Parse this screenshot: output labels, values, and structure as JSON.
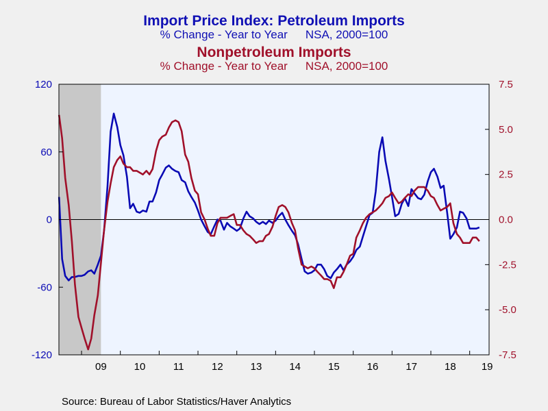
{
  "titles": {
    "line1": "Import Price Index: Petroleum Imports",
    "line1_sub_left": "% Change - Year to Year",
    "line1_sub_right": "NSA, 2000=100",
    "line2": "Nonpetroleum Imports",
    "line2_sub_left": "% Change - Year to Year",
    "line2_sub_right": "NSA, 2000=100"
  },
  "source": "Source:  Bureau of Labor Statistics/Haver Analytics",
  "colors": {
    "petroleum": "#0a0ab4",
    "nonpetroleum": "#a0102a",
    "plot_bg": "#eef4ff",
    "recession": "#c8c8c8"
  },
  "chart_data": {
    "type": "line",
    "x_tick_labels": [
      "09",
      "10",
      "11",
      "12",
      "13",
      "14",
      "15",
      "16",
      "17",
      "18",
      "19"
    ],
    "x_range": [
      2008.417,
      2019.5
    ],
    "recession_shade": [
      2008.417,
      2009.5
    ],
    "y_left": {
      "range": [
        -120,
        120
      ],
      "ticks": [
        "120",
        "60",
        "0",
        "-60",
        "-120"
      ],
      "tick_values": [
        120,
        60,
        0,
        -60,
        -120
      ]
    },
    "y_right": {
      "range": [
        -7.5,
        7.5
      ],
      "ticks": [
        "7.5",
        "5.0",
        "2.5",
        "0.0",
        "-2.5",
        "-5.0",
        "-7.5"
      ],
      "tick_values": [
        7.5,
        5.0,
        2.5,
        0.0,
        -2.5,
        -5.0,
        -7.5
      ]
    },
    "series": [
      {
        "name": "Import Price Index: Petroleum Imports",
        "axis": "left",
        "points": [
          [
            2008.42,
            20
          ],
          [
            2008.5,
            -35
          ],
          [
            2008.58,
            -50
          ],
          [
            2008.67,
            -54
          ],
          [
            2008.75,
            -51
          ],
          [
            2008.83,
            -51
          ],
          [
            2008.92,
            -50
          ],
          [
            2009.0,
            -50
          ],
          [
            2009.08,
            -49
          ],
          [
            2009.17,
            -46
          ],
          [
            2009.25,
            -45
          ],
          [
            2009.33,
            -48
          ],
          [
            2009.42,
            -40
          ],
          [
            2009.5,
            -32
          ],
          [
            2009.58,
            -10
          ],
          [
            2009.67,
            30
          ],
          [
            2009.75,
            78
          ],
          [
            2009.83,
            94
          ],
          [
            2009.92,
            82
          ],
          [
            2010.0,
            66
          ],
          [
            2010.08,
            57
          ],
          [
            2010.17,
            38
          ],
          [
            2010.25,
            10
          ],
          [
            2010.33,
            14
          ],
          [
            2010.42,
            7
          ],
          [
            2010.5,
            6
          ],
          [
            2010.58,
            8
          ],
          [
            2010.67,
            7
          ],
          [
            2010.75,
            16
          ],
          [
            2010.83,
            16
          ],
          [
            2010.92,
            24
          ],
          [
            2011.0,
            35
          ],
          [
            2011.08,
            40
          ],
          [
            2011.17,
            46
          ],
          [
            2011.25,
            48
          ],
          [
            2011.33,
            45
          ],
          [
            2011.42,
            43
          ],
          [
            2011.5,
            42
          ],
          [
            2011.58,
            35
          ],
          [
            2011.67,
            33
          ],
          [
            2011.75,
            25
          ],
          [
            2011.83,
            20
          ],
          [
            2011.92,
            15
          ],
          [
            2012.0,
            8
          ],
          [
            2012.08,
            0
          ],
          [
            2012.17,
            -6
          ],
          [
            2012.25,
            -11
          ],
          [
            2012.33,
            -13
          ],
          [
            2012.42,
            -6
          ],
          [
            2012.5,
            0
          ],
          [
            2012.58,
            -1
          ],
          [
            2012.67,
            -9
          ],
          [
            2012.75,
            -3
          ],
          [
            2012.83,
            -6
          ],
          [
            2012.92,
            -8
          ],
          [
            2013.0,
            -10
          ],
          [
            2013.08,
            -8
          ],
          [
            2013.17,
            1
          ],
          [
            2013.25,
            7
          ],
          [
            2013.33,
            3
          ],
          [
            2013.42,
            1
          ],
          [
            2013.5,
            -2
          ],
          [
            2013.58,
            -4
          ],
          [
            2013.67,
            -2
          ],
          [
            2013.75,
            -4
          ],
          [
            2013.83,
            -1
          ],
          [
            2013.92,
            -3
          ],
          [
            2014.0,
            -1
          ],
          [
            2014.08,
            3
          ],
          [
            2014.17,
            6
          ],
          [
            2014.25,
            0
          ],
          [
            2014.33,
            -5
          ],
          [
            2014.42,
            -10
          ],
          [
            2014.5,
            -14
          ],
          [
            2014.58,
            -22
          ],
          [
            2014.67,
            -35
          ],
          [
            2014.75,
            -46
          ],
          [
            2014.83,
            -48
          ],
          [
            2014.92,
            -47
          ],
          [
            2015.0,
            -45
          ],
          [
            2015.08,
            -40
          ],
          [
            2015.17,
            -40
          ],
          [
            2015.25,
            -44
          ],
          [
            2015.33,
            -50
          ],
          [
            2015.42,
            -52
          ],
          [
            2015.5,
            -47
          ],
          [
            2015.58,
            -44
          ],
          [
            2015.67,
            -40
          ],
          [
            2015.75,
            -45
          ],
          [
            2015.83,
            -40
          ],
          [
            2015.92,
            -37
          ],
          [
            2016.0,
            -33
          ],
          [
            2016.08,
            -27
          ],
          [
            2016.17,
            -24
          ],
          [
            2016.25,
            -15
          ],
          [
            2016.33,
            -6
          ],
          [
            2016.42,
            4
          ],
          [
            2016.5,
            6
          ],
          [
            2016.58,
            25
          ],
          [
            2016.67,
            60
          ],
          [
            2016.75,
            73
          ],
          [
            2016.83,
            52
          ],
          [
            2016.92,
            36
          ],
          [
            2017.0,
            20
          ],
          [
            2017.08,
            3
          ],
          [
            2017.17,
            5
          ],
          [
            2017.25,
            14
          ],
          [
            2017.33,
            19
          ],
          [
            2017.42,
            12
          ],
          [
            2017.5,
            27
          ],
          [
            2017.58,
            23
          ],
          [
            2017.67,
            19
          ],
          [
            2017.75,
            18
          ],
          [
            2017.83,
            22
          ],
          [
            2017.92,
            34
          ],
          [
            2018.0,
            42
          ],
          [
            2018.08,
            45
          ],
          [
            2018.17,
            38
          ],
          [
            2018.25,
            28
          ],
          [
            2018.33,
            30
          ],
          [
            2018.42,
            6
          ],
          [
            2018.5,
            -17
          ],
          [
            2018.58,
            -13
          ],
          [
            2018.67,
            -7
          ],
          [
            2018.75,
            7
          ],
          [
            2018.83,
            6
          ],
          [
            2018.92,
            1
          ],
          [
            2019.0,
            -8
          ],
          [
            2019.08,
            -8
          ],
          [
            2019.17,
            -8
          ],
          [
            2019.25,
            -7
          ]
        ]
      },
      {
        "name": "Nonpetroleum Imports",
        "axis": "right",
        "points": [
          [
            2008.42,
            5.8
          ],
          [
            2008.5,
            4.5
          ],
          [
            2008.58,
            2.3
          ],
          [
            2008.67,
            0.8
          ],
          [
            2008.75,
            -1.2
          ],
          [
            2008.83,
            -3.6
          ],
          [
            2008.92,
            -5.4
          ],
          [
            2009.0,
            -6.0
          ],
          [
            2009.08,
            -6.6
          ],
          [
            2009.17,
            -7.2
          ],
          [
            2009.25,
            -6.6
          ],
          [
            2009.33,
            -5.3
          ],
          [
            2009.42,
            -4.2
          ],
          [
            2009.5,
            -2.4
          ],
          [
            2009.58,
            -0.6
          ],
          [
            2009.67,
            1.0
          ],
          [
            2009.75,
            2.0
          ],
          [
            2009.83,
            2.9
          ],
          [
            2009.92,
            3.3
          ],
          [
            2010.0,
            3.5
          ],
          [
            2010.08,
            3.1
          ],
          [
            2010.17,
            2.9
          ],
          [
            2010.25,
            2.9
          ],
          [
            2010.33,
            2.7
          ],
          [
            2010.42,
            2.7
          ],
          [
            2010.5,
            2.6
          ],
          [
            2010.58,
            2.5
          ],
          [
            2010.67,
            2.7
          ],
          [
            2010.75,
            2.5
          ],
          [
            2010.83,
            2.8
          ],
          [
            2010.92,
            3.8
          ],
          [
            2011.0,
            4.4
          ],
          [
            2011.08,
            4.6
          ],
          [
            2011.17,
            4.7
          ],
          [
            2011.25,
            5.1
          ],
          [
            2011.33,
            5.4
          ],
          [
            2011.42,
            5.5
          ],
          [
            2011.5,
            5.4
          ],
          [
            2011.58,
            4.9
          ],
          [
            2011.67,
            3.6
          ],
          [
            2011.75,
            3.2
          ],
          [
            2011.83,
            2.3
          ],
          [
            2011.92,
            1.6
          ],
          [
            2012.0,
            1.4
          ],
          [
            2012.08,
            0.4
          ],
          [
            2012.17,
            0.0
          ],
          [
            2012.25,
            -0.5
          ],
          [
            2012.33,
            -0.9
          ],
          [
            2012.42,
            -0.9
          ],
          [
            2012.5,
            -0.2
          ],
          [
            2012.58,
            0.1
          ],
          [
            2012.67,
            0.1
          ],
          [
            2012.75,
            0.1
          ],
          [
            2012.83,
            0.2
          ],
          [
            2012.92,
            0.3
          ],
          [
            2013.0,
            -0.3
          ],
          [
            2013.08,
            -0.3
          ],
          [
            2013.17,
            -0.6
          ],
          [
            2013.25,
            -0.8
          ],
          [
            2013.33,
            -0.9
          ],
          [
            2013.42,
            -1.1
          ],
          [
            2013.5,
            -1.3
          ],
          [
            2013.58,
            -1.2
          ],
          [
            2013.67,
            -1.2
          ],
          [
            2013.75,
            -0.9
          ],
          [
            2013.83,
            -0.8
          ],
          [
            2013.92,
            -0.4
          ],
          [
            2014.0,
            0.2
          ],
          [
            2014.08,
            0.7
          ],
          [
            2014.17,
            0.8
          ],
          [
            2014.25,
            0.7
          ],
          [
            2014.33,
            0.4
          ],
          [
            2014.42,
            -0.2
          ],
          [
            2014.5,
            -0.6
          ],
          [
            2014.58,
            -1.6
          ],
          [
            2014.67,
            -2.5
          ],
          [
            2014.75,
            -2.6
          ],
          [
            2014.83,
            -2.7
          ],
          [
            2014.92,
            -2.6
          ],
          [
            2015.0,
            -2.7
          ],
          [
            2015.08,
            -2.9
          ],
          [
            2015.17,
            -3.1
          ],
          [
            2015.25,
            -3.3
          ],
          [
            2015.33,
            -3.3
          ],
          [
            2015.42,
            -3.4
          ],
          [
            2015.5,
            -3.8
          ],
          [
            2015.58,
            -3.2
          ],
          [
            2015.67,
            -3.2
          ],
          [
            2015.75,
            -2.9
          ],
          [
            2015.83,
            -2.5
          ],
          [
            2015.92,
            -2.0
          ],
          [
            2016.0,
            -1.9
          ],
          [
            2016.08,
            -1.0
          ],
          [
            2016.17,
            -0.6
          ],
          [
            2016.25,
            -0.2
          ],
          [
            2016.33,
            0.1
          ],
          [
            2016.42,
            0.3
          ],
          [
            2016.5,
            0.4
          ],
          [
            2016.58,
            0.5
          ],
          [
            2016.67,
            0.7
          ],
          [
            2016.75,
            0.9
          ],
          [
            2016.83,
            1.2
          ],
          [
            2016.92,
            1.3
          ],
          [
            2017.0,
            1.5
          ],
          [
            2017.08,
            1.2
          ],
          [
            2017.17,
            0.9
          ],
          [
            2017.25,
            1.0
          ],
          [
            2017.33,
            1.2
          ],
          [
            2017.42,
            1.4
          ],
          [
            2017.5,
            1.3
          ],
          [
            2017.58,
            1.6
          ],
          [
            2017.67,
            1.8
          ],
          [
            2017.75,
            1.8
          ],
          [
            2017.83,
            1.8
          ],
          [
            2017.92,
            1.6
          ],
          [
            2018.0,
            1.3
          ],
          [
            2018.08,
            1.2
          ],
          [
            2018.17,
            0.8
          ],
          [
            2018.25,
            0.5
          ],
          [
            2018.33,
            0.6
          ],
          [
            2018.42,
            0.7
          ],
          [
            2018.5,
            0.9
          ],
          [
            2018.58,
            -0.2
          ],
          [
            2018.67,
            -0.8
          ],
          [
            2018.75,
            -1.0
          ],
          [
            2018.83,
            -1.3
          ],
          [
            2018.92,
            -1.3
          ],
          [
            2019.0,
            -1.3
          ],
          [
            2019.08,
            -1.0
          ],
          [
            2019.17,
            -1.0
          ],
          [
            2019.25,
            -1.2
          ]
        ]
      }
    ]
  }
}
